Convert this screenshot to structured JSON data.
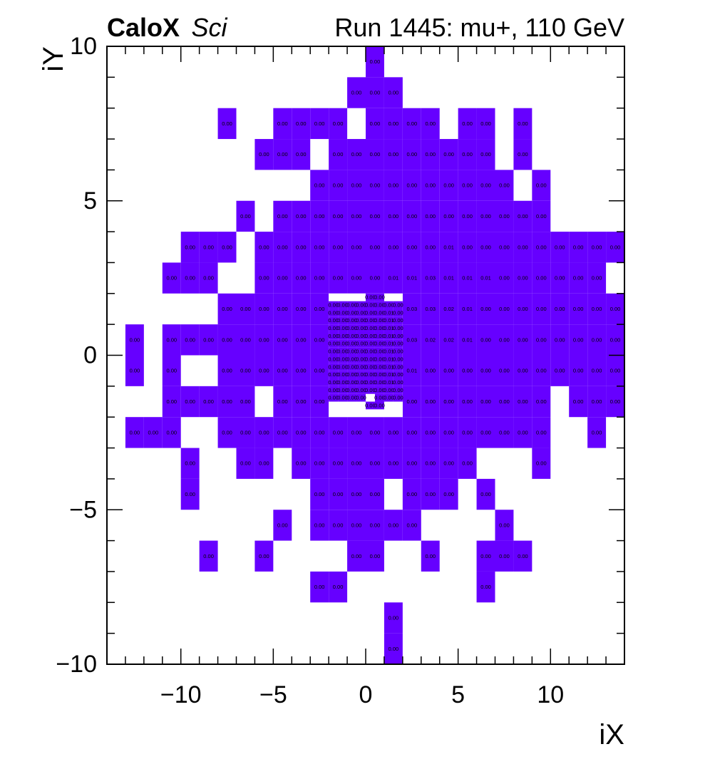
{
  "chart_data": {
    "type": "heatmap",
    "brand": "CaloX",
    "brand_suffix": "Sci",
    "title": "Run 1445: mu+, 110 GeV",
    "xlabel": "iX",
    "ylabel": "iY",
    "xlim": [
      -14,
      14
    ],
    "ylim": [
      -10,
      10
    ],
    "x_ticks": [
      -10,
      -5,
      0,
      5,
      10
    ],
    "y_ticks": [
      -10,
      -5,
      0,
      5,
      10
    ],
    "x_tick_labels": [
      "−10",
      "−5",
      "0",
      "5",
      "10"
    ],
    "y_tick_labels": [
      "−10",
      "−5",
      "0",
      "5",
      "10"
    ],
    "fill_color": "#6600ff",
    "grid": false,
    "legend": "none",
    "cell_size": [
      1,
      1
    ],
    "cell_rows": [
      {
        "y": 9,
        "x_from": 0,
        "values": [
          "0.00"
        ]
      },
      {
        "y": 8,
        "x_from": -1,
        "values": [
          "0.00",
          "0.00",
          "0.00"
        ]
      },
      {
        "y": 7,
        "x_from": -8,
        "values": [
          "0.00"
        ]
      },
      {
        "y": 7,
        "x_from": -5,
        "values": [
          "0.00",
          "0.00",
          "0.00",
          "0.00"
        ]
      },
      {
        "y": 7,
        "x_from": 0,
        "values": [
          "0.00",
          "0.00",
          "0.00",
          "0.00"
        ]
      },
      {
        "y": 7,
        "x_from": 5,
        "values": [
          "0.00",
          "0.00"
        ]
      },
      {
        "y": 7,
        "x_from": 8,
        "values": [
          "0.00"
        ]
      },
      {
        "y": 6,
        "x_from": -6,
        "values": [
          "0.00",
          "0.00",
          "0.00"
        ]
      },
      {
        "y": 6,
        "x_from": -2,
        "values": [
          "0.00",
          "0.00",
          "0.00",
          "0.00",
          "0.00",
          "0.00",
          "0.00",
          "0.00",
          "0.00"
        ]
      },
      {
        "y": 6,
        "x_from": 8,
        "values": [
          "0.00"
        ]
      },
      {
        "y": 5,
        "x_from": -3,
        "values": [
          "0.00",
          "0.00",
          "0.00",
          "0.00",
          "0.00",
          "0.00",
          "0.00",
          "0.00",
          "0.00",
          "0.00",
          "0.00"
        ]
      },
      {
        "y": 5,
        "x_from": 9,
        "values": [
          "0.00"
        ]
      },
      {
        "y": 4,
        "x_from": -7,
        "values": [
          "0.00"
        ]
      },
      {
        "y": 4,
        "x_from": -5,
        "values": [
          "0.00",
          "0.00",
          "0.00",
          "0.00",
          "0.00",
          "0.00",
          "0.00",
          "0.00",
          "0.00",
          "0.00",
          "0.00",
          "0.00",
          "0.00",
          "0.00",
          "0.00"
        ]
      },
      {
        "y": 3,
        "x_from": -10,
        "values": [
          "0.00",
          "0.00",
          "0.00"
        ]
      },
      {
        "y": 3,
        "x_from": -6,
        "values": [
          "0.00",
          "0.00",
          "0.00",
          "0.00",
          "0.00",
          "0.00",
          "0.00",
          "0.00",
          "0.00",
          "0.00",
          "0.01",
          "0.00",
          "0.00",
          "0.00",
          "0.00",
          "0.00",
          "0.00",
          "0.00",
          "0.00",
          "0.00"
        ]
      },
      {
        "y": 2,
        "x_from": -11,
        "values": [
          "0.00",
          "0.00",
          "0.00"
        ]
      },
      {
        "y": 2,
        "x_from": -6,
        "values": [
          "0.00",
          "0.00",
          "0.00",
          "0.00",
          "0.00",
          "0.00",
          "0.00",
          "0.01",
          "0.01",
          "0.03",
          "0.01",
          "0.01",
          "0.01",
          "0.00",
          "0.00",
          "0.00",
          "0.00",
          "0.00",
          "0.00"
        ]
      },
      {
        "y": 1,
        "x_from": -8,
        "values": [
          "0.00",
          "0.00",
          "0.00",
          "0.00",
          "0.00",
          "0.00"
        ]
      },
      {
        "y": 1,
        "x_from": 2,
        "values": [
          "0.03",
          "0.03",
          "0.02",
          "0.01",
          "0.00",
          "0.00",
          "0.00",
          "0.00",
          "0.00",
          "0.00",
          "0.00",
          "0.00"
        ]
      },
      {
        "y": 0,
        "x_from": -13,
        "values": [
          "0.00"
        ]
      },
      {
        "y": 0,
        "x_from": -11,
        "values": [
          "0.00",
          "0.00",
          "0.00",
          "0.00",
          "0.00",
          "0.00",
          "0.00",
          "0.00",
          "0.00"
        ]
      },
      {
        "y": 0,
        "x_from": 2,
        "values": [
          "0.03",
          "0.02",
          "0.02",
          "0.01",
          "0.00",
          "0.00",
          "0.00",
          "0.00",
          "0.00",
          "0.00",
          "0.00",
          "0.00"
        ]
      },
      {
        "y": -1,
        "x_from": -13,
        "values": [
          "0.00"
        ]
      },
      {
        "y": -1,
        "x_from": -11,
        "values": [
          "0.00"
        ]
      },
      {
        "y": -1,
        "x_from": -8,
        "values": [
          "0.00",
          "0.00",
          "0.00",
          "0.00",
          "0.00",
          "0.00"
        ]
      },
      {
        "y": -1,
        "x_from": 2,
        "values": [
          "0.01",
          "0.00",
          "0.00",
          "0.00",
          "0.00",
          "0.00",
          "0.00",
          "0.00",
          "0.00",
          "0.00",
          "0.00",
          "0.00"
        ]
      },
      {
        "y": -2,
        "x_from": -11,
        "values": [
          "0.00",
          "0.00",
          "0.00",
          "0.00",
          "0.00"
        ]
      },
      {
        "y": -2,
        "x_from": -5,
        "values": [
          "0.00",
          "0.00",
          "0.00"
        ]
      },
      {
        "y": -2,
        "x_from": 2,
        "values": [
          "0.00",
          "0.00",
          "0.00",
          "0.00",
          "0.00",
          "0.00",
          "0.00",
          "0.00"
        ]
      },
      {
        "y": -2,
        "x_from": 11,
        "values": [
          "0.00",
          "0.00",
          "0.00"
        ]
      },
      {
        "y": -3,
        "x_from": -13,
        "values": [
          "0.00",
          "0.00",
          "0.00"
        ]
      },
      {
        "y": -3,
        "x_from": -8,
        "values": [
          "0.00",
          "0.00",
          "0.00",
          "0.00",
          "0.00",
          "0.00",
          "0.00",
          "0.00",
          "0.00",
          "0.00",
          "0.00",
          "0.00",
          "0.00",
          "0.00",
          "0.00",
          "0.00",
          "0.00",
          "0.00"
        ]
      },
      {
        "y": -3,
        "x_from": 12,
        "values": [
          "0.00"
        ]
      },
      {
        "y": -4,
        "x_from": -10,
        "values": [
          "0.00"
        ]
      },
      {
        "y": -4,
        "x_from": -7,
        "values": [
          "0.00",
          "0.00"
        ]
      },
      {
        "y": -4,
        "x_from": -4,
        "values": [
          "0.00",
          "0.00",
          "0.00",
          "0.00",
          "0.00",
          "0.00",
          "0.00",
          "0.00",
          "0.00",
          "0.00"
        ]
      },
      {
        "y": -4,
        "x_from": 9,
        "values": [
          "0.00"
        ]
      },
      {
        "y": -5,
        "x_from": -10,
        "values": [
          "0.00"
        ]
      },
      {
        "y": -5,
        "x_from": -3,
        "values": [
          "0.00",
          "0.00",
          "0.00",
          "0.00"
        ]
      },
      {
        "y": -5,
        "x_from": 2,
        "values": [
          "0.00",
          "0.00",
          "0.00"
        ]
      },
      {
        "y": -5,
        "x_from": 6,
        "values": [
          "0.00"
        ]
      },
      {
        "y": -6,
        "x_from": -5,
        "values": [
          "0.00"
        ]
      },
      {
        "y": -6,
        "x_from": -3,
        "values": [
          "0.00",
          "0.00",
          "0.00",
          "0.00",
          "0.00",
          "0.00"
        ]
      },
      {
        "y": -6,
        "x_from": 7,
        "values": [
          "0.00"
        ]
      },
      {
        "y": -7,
        "x_from": -9,
        "values": [
          "0.00"
        ]
      },
      {
        "y": -7,
        "x_from": -6,
        "values": [
          "0.00"
        ]
      },
      {
        "y": -7,
        "x_from": -1,
        "values": [
          "0.00",
          "0.00"
        ]
      },
      {
        "y": -7,
        "x_from": 3,
        "values": [
          "0.00"
        ]
      },
      {
        "y": -7,
        "x_from": 6,
        "values": [
          "0.00",
          "0.00",
          "0.00"
        ]
      },
      {
        "y": -8,
        "x_from": -3,
        "values": [
          "0.00",
          "0.00"
        ]
      },
      {
        "y": -8,
        "x_from": 6,
        "values": [
          "0.00"
        ]
      },
      {
        "y": -9,
        "x_from": 1,
        "values": [
          "0.00"
        ]
      },
      {
        "y": -10,
        "x_from": 1,
        "values": [
          "0.00"
        ]
      }
    ],
    "fine_bins": {
      "x_range": [
        -2,
        2
      ],
      "y_range": [
        -2,
        2
      ],
      "cell_size": [
        0.5,
        0.25
      ],
      "rows": [
        {
          "y": 1.75,
          "x_from": 0,
          "values": [
            "0.00",
            "0.00"
          ]
        },
        {
          "y": 1.5,
          "x_from": -2,
          "values": [
            "0.00",
            "0.00",
            "0.00",
            "0.00",
            "0.00",
            "0.00",
            "0.00",
            "0.00"
          ]
        },
        {
          "y": 1.25,
          "x_from": -2,
          "values": [
            "0.00",
            "0.00",
            "0.00",
            "0.00",
            "0.00",
            "0.00",
            "0.01",
            "0.00"
          ]
        },
        {
          "y": 1.0,
          "x_from": -2,
          "values": [
            "0.00",
            "0.00",
            "0.00",
            "0.00",
            "0.00",
            "0.00",
            "0.01",
            "0.00"
          ]
        },
        {
          "y": 0.75,
          "x_from": -2,
          "values": [
            "0.00",
            "0.00",
            "0.00",
            "0.00",
            "0.00",
            "0.00",
            "0.01",
            "0.00"
          ]
        },
        {
          "y": 0.5,
          "x_from": -2,
          "values": [
            "0.00",
            "0.00",
            "0.00",
            "0.00",
            "0.00",
            "0.00",
            "0.01",
            "0.00"
          ]
        },
        {
          "y": 0.25,
          "x_from": -2,
          "values": [
            "0.00",
            "0.00",
            "0.00",
            "0.00",
            "0.00",
            "0.00",
            "0.01",
            "0.00"
          ]
        },
        {
          "y": 0.0,
          "x_from": -2,
          "values": [
            "0.00",
            "0.00",
            "0.00",
            "0.00",
            "0.00",
            "0.00",
            "0.01",
            "0.00"
          ]
        },
        {
          "y": -0.25,
          "x_from": -2,
          "values": [
            "0.00",
            "0.00",
            "0.00",
            "0.00",
            "0.00",
            "0.00",
            "0.01",
            "0.00"
          ]
        },
        {
          "y": -0.5,
          "x_from": -2,
          "values": [
            "0.00",
            "0.00",
            "0.00",
            "0.00",
            "0.00",
            "0.00",
            "0.01",
            "0.00"
          ]
        },
        {
          "y": -0.75,
          "x_from": -2,
          "values": [
            "0.00",
            "0.00",
            "0.00",
            "0.00",
            "0.00",
            "0.00",
            "0.01",
            "0.00"
          ]
        },
        {
          "y": -1.0,
          "x_from": -2,
          "values": [
            "0.00",
            "0.00",
            "0.00",
            "0.00",
            "0.00",
            "0.00",
            "0.01",
            "0.00"
          ]
        },
        {
          "y": -1.25,
          "x_from": -2,
          "values": [
            "0.00",
            "0.00",
            "0.00",
            "0.00",
            "0.00",
            "0.00",
            "0.00",
            "0.00"
          ]
        },
        {
          "y": -1.5,
          "x_from": -2,
          "values": [
            "0.00",
            "0.00",
            "0.00",
            "0.00"
          ]
        },
        {
          "y": -1.5,
          "x_from": 0.5,
          "values": [
            "0.00",
            "0.00",
            "0.00"
          ]
        },
        {
          "y": -1.75,
          "x_from": 0,
          "values": [
            "0.00",
            "0.00"
          ]
        }
      ]
    }
  }
}
